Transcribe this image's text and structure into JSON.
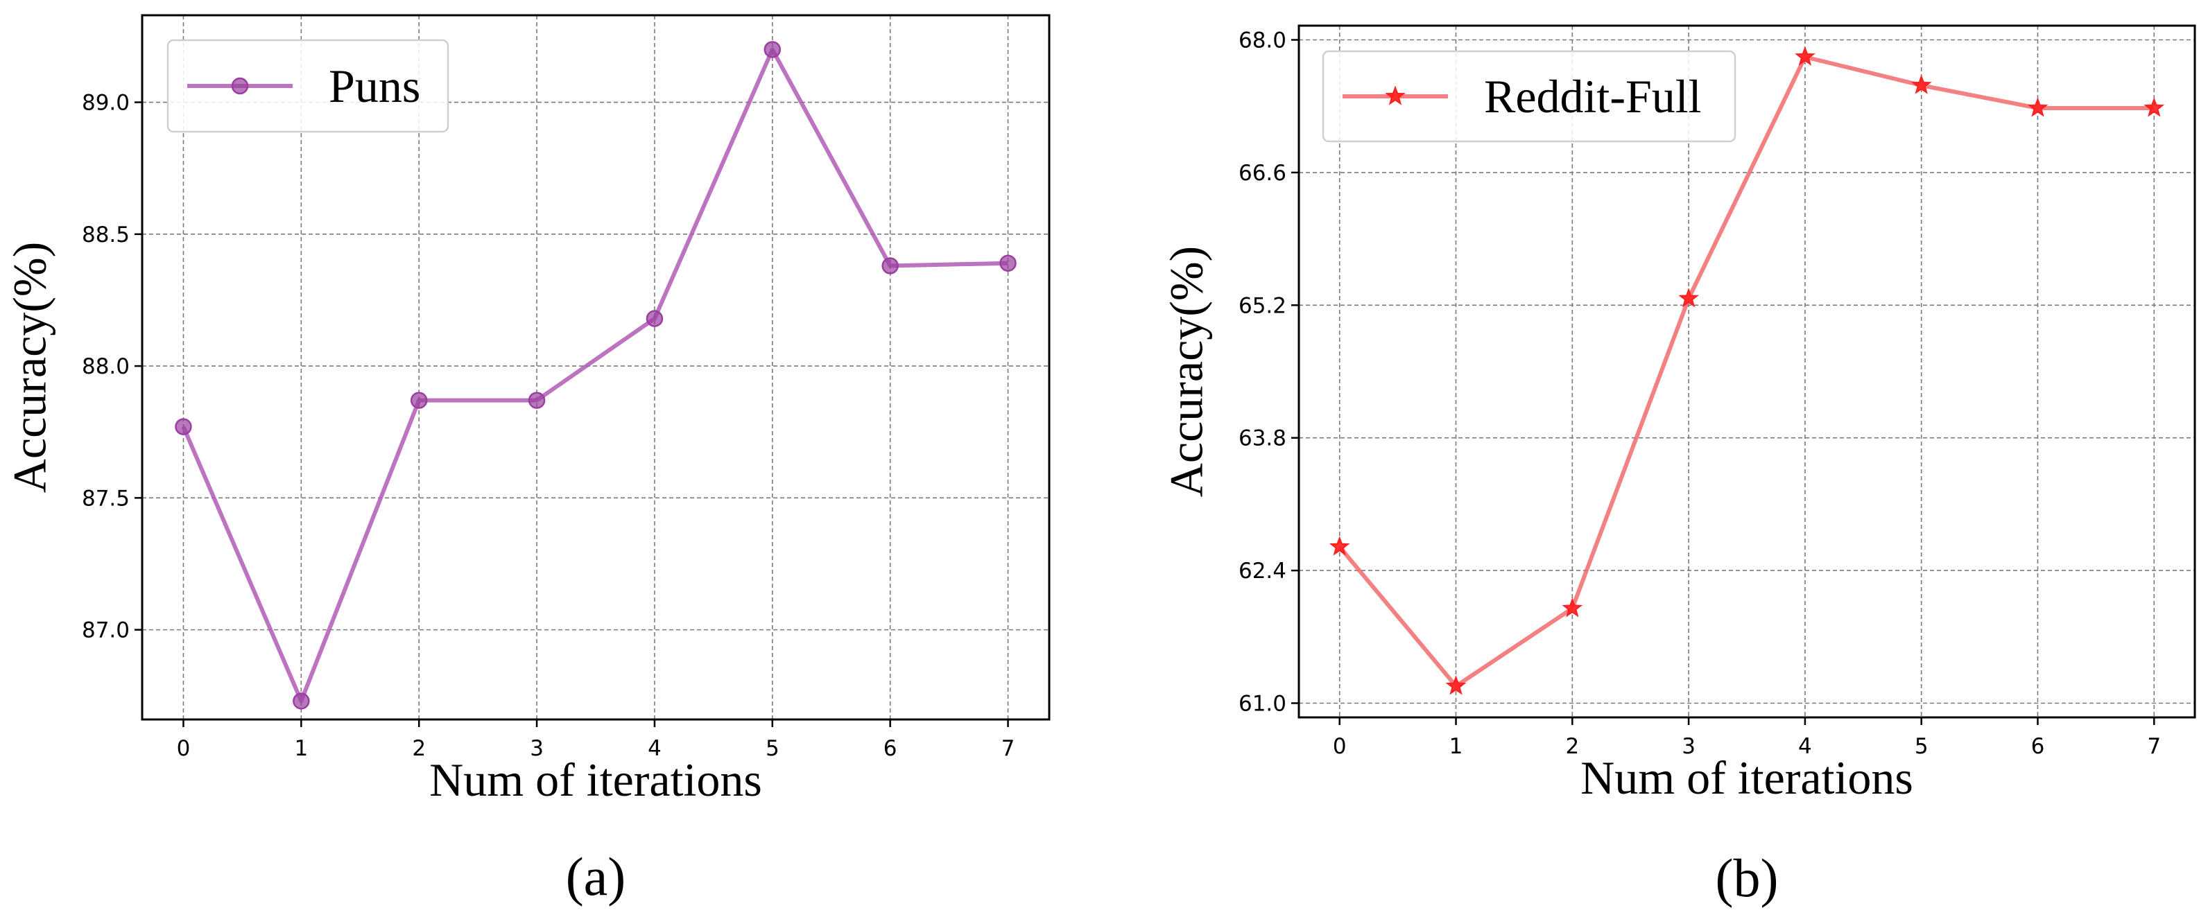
{
  "chart_data": [
    {
      "type": "line",
      "panel_label": "(a)",
      "title": "",
      "xlabel": "Num of iterations",
      "ylabel": "Accuracy(%)",
      "x": [
        0,
        1,
        2,
        3,
        4,
        5,
        6,
        7
      ],
      "xticks": [
        "0",
        "1",
        "2",
        "3",
        "4",
        "5",
        "6",
        "7"
      ],
      "xlim": [
        -0.35,
        7.35
      ],
      "ylim": [
        86.66,
        89.33
      ],
      "yticks": [
        87.0,
        87.5,
        88.0,
        88.5,
        89.0
      ],
      "ytick_labels": [
        "87.0",
        "87.5",
        "88.0",
        "88.5",
        "89.0"
      ],
      "grid": true,
      "legend_position": "top-left",
      "series": [
        {
          "name": "Puns",
          "values": [
            87.77,
            86.73,
            87.87,
            87.87,
            88.18,
            89.2,
            88.38,
            88.39
          ],
          "color": "#b05cb5",
          "marker": "circle",
          "marker_color": "#9a3fa0"
        }
      ]
    },
    {
      "type": "line",
      "panel_label": "(b)",
      "title": "",
      "xlabel": "Num of iterations",
      "ylabel": "Accuracy(%)",
      "x": [
        0,
        1,
        2,
        3,
        4,
        5,
        6,
        7
      ],
      "xticks": [
        "0",
        "1",
        "2",
        "3",
        "4",
        "5",
        "6",
        "7"
      ],
      "xlim": [
        -0.35,
        7.35
      ],
      "ylim": [
        60.85,
        68.15
      ],
      "yticks": [
        61.0,
        62.4,
        63.8,
        65.2,
        66.6,
        68.0
      ],
      "ytick_labels": [
        "61.0",
        "62.4",
        "63.8",
        "65.2",
        "66.6",
        "68.0"
      ],
      "grid": true,
      "legend_position": "top-left",
      "series": [
        {
          "name": "Reddit-Full",
          "values": [
            62.65,
            61.18,
            62.0,
            65.27,
            67.82,
            67.52,
            67.28,
            67.28
          ],
          "color": "#f26b6b",
          "marker": "star",
          "marker_color": "#ff2020"
        }
      ]
    }
  ]
}
